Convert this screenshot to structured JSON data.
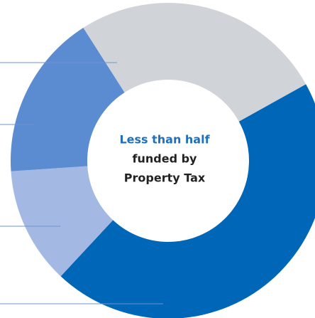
{
  "chart_data": {
    "type": "donut",
    "center_text": [
      "Less than half",
      "funded by",
      "Property Tax"
    ],
    "center_text_colors": [
      "#1f6fb9",
      "#222222",
      "#222222"
    ],
    "values": [
      45,
      12,
      17,
      26
    ],
    "colors": [
      "#0067b8",
      "#a3b9e3",
      "#5b8bd0",
      "#d0d4d9"
    ]
  }
}
